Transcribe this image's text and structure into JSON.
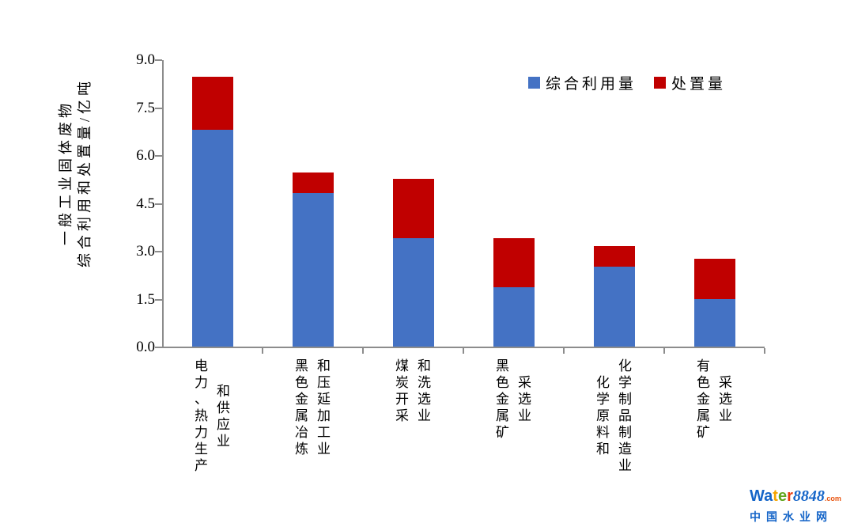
{
  "chart_data": {
    "type": "bar",
    "stacked": true,
    "ylabel_lines": [
      "一般工业固体废物",
      "综合利用和处置量/亿吨"
    ],
    "ylim": [
      0,
      9
    ],
    "ytick_step": 1.5,
    "yticks": [
      "0.0",
      "1.5",
      "3.0",
      "4.5",
      "6.0",
      "7.5",
      "9.0"
    ],
    "grid": false,
    "legend_position": "top-right-inside",
    "categories": [
      "电力、热力生产和供应业",
      "黑色金属冶炼和压延加工业",
      "煤炭开采和洗选业",
      "黑色金属矿采选业",
      "化学原料和化学制品制造业",
      "有色金属矿采选业"
    ],
    "category_label_columns": [
      [
        "电力、热力生产",
        "和供应业"
      ],
      [
        "黑色金属冶炼",
        "和压延加工业"
      ],
      [
        "煤炭开采",
        "和洗选业"
      ],
      [
        "黑色金属矿",
        "采选业"
      ],
      [
        "化学原料和",
        "化学制品制造业"
      ],
      [
        "有色金属矿",
        "采选业"
      ]
    ],
    "series": [
      {
        "name": "综合利用量",
        "color": "#4472C4",
        "values": [
          6.8,
          4.8,
          3.4,
          1.85,
          2.5,
          1.5
        ]
      },
      {
        "name": "处置量",
        "color": "#C00000",
        "values": [
          1.65,
          0.65,
          1.85,
          1.55,
          0.65,
          1.25
        ]
      }
    ]
  },
  "axis": {
    "line_color": "#8C8C8C",
    "tick_label_color": "#000000"
  },
  "watermark": {
    "brand_letters": [
      {
        "ch": "W",
        "color": "#1565C8"
      },
      {
        "ch": "a",
        "color": "#1565C8"
      },
      {
        "ch": "t",
        "color": "#F5A500"
      },
      {
        "ch": "e",
        "color": "#61A61E"
      },
      {
        "ch": "r",
        "color": "#E8380D"
      }
    ],
    "brand_number": "8848",
    "brand_tld": ".com",
    "subtitle": "中国水业网"
  }
}
